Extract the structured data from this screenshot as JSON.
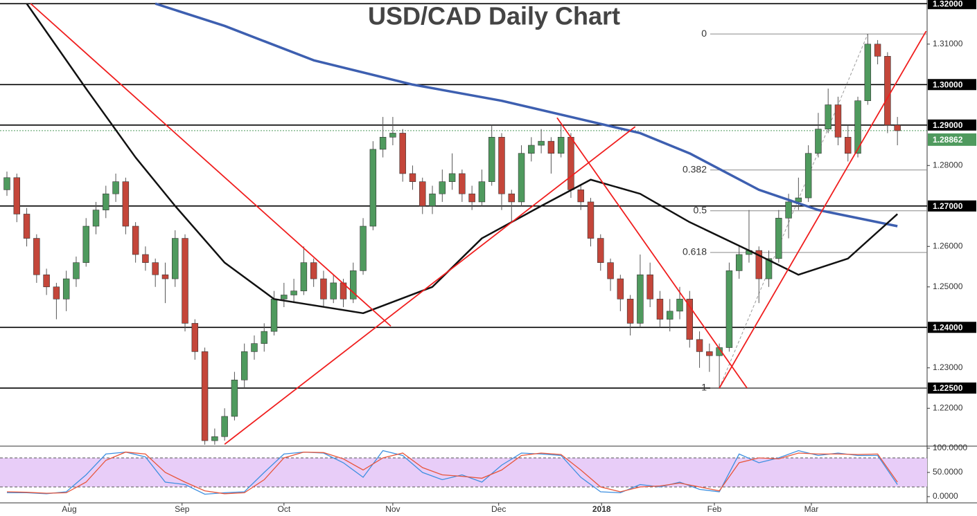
{
  "chart_data": {
    "type": "candlestick",
    "title": "USD/CAD Daily Chart",
    "xlim": [
      -0.7,
      93
    ],
    "xticks": [
      {
        "value": 6.3,
        "label": "Aug"
      },
      {
        "value": 17.7,
        "label": "Sep"
      },
      {
        "value": 28,
        "label": "Oct"
      },
      {
        "value": 39,
        "label": "Nov"
      },
      {
        "value": 49.7,
        "label": "Dec"
      },
      {
        "value": 60.1,
        "label": "2018"
      },
      {
        "value": 71.5,
        "label": "Feb"
      },
      {
        "value": 81.3,
        "label": "Mar"
      }
    ],
    "ylim": [
      1.2115,
      1.3209
    ],
    "yticks": [
      {
        "value": 1.22,
        "label": "1.22000"
      },
      {
        "value": 1.23,
        "label": "1.23000"
      },
      {
        "value": 1.25,
        "label": "1.25000"
      },
      {
        "value": 1.26,
        "label": "1.26000"
      },
      {
        "value": 1.28,
        "label": "1.28000"
      },
      {
        "value": 1.31,
        "label": "1.31000"
      }
    ],
    "levels": [
      {
        "value": 1.32,
        "label": "1.32000"
      },
      {
        "value": 1.3,
        "label": "1.30000"
      },
      {
        "value": 1.29,
        "label": "1.29000"
      },
      {
        "value": 1.27,
        "label": "1.27000"
      },
      {
        "value": 1.24,
        "label": "1.24000"
      },
      {
        "value": 1.225,
        "label": "1.22500"
      }
    ],
    "last_price": {
      "value": 1.28862,
      "label": "1.28862"
    },
    "up_color": "#4f9a5e",
    "down_color": "#c4463a",
    "candles": [
      [
        1.274,
        1.2785,
        1.2725,
        1.277
      ],
      [
        1.277,
        1.278,
        1.266,
        1.268
      ],
      [
        1.268,
        1.2695,
        1.26,
        1.262
      ],
      [
        1.262,
        1.263,
        1.251,
        1.253
      ],
      [
        1.253,
        1.2545,
        1.248,
        1.25
      ],
      [
        1.25,
        1.251,
        1.242,
        1.247
      ],
      [
        1.247,
        1.254,
        1.244,
        1.252
      ],
      [
        1.252,
        1.2575,
        1.25,
        1.256
      ],
      [
        1.256,
        1.267,
        1.255,
        1.265
      ],
      [
        1.265,
        1.271,
        1.263,
        1.269
      ],
      [
        1.269,
        1.275,
        1.267,
        1.273
      ],
      [
        1.273,
        1.278,
        1.271,
        1.276
      ],
      [
        1.276,
        1.277,
        1.263,
        1.265
      ],
      [
        1.265,
        1.266,
        1.256,
        1.258
      ],
      [
        1.258,
        1.26,
        1.254,
        1.256
      ],
      [
        1.256,
        1.257,
        1.25,
        1.253
      ],
      [
        1.253,
        1.256,
        1.246,
        1.252
      ],
      [
        1.252,
        1.264,
        1.25,
        1.262
      ],
      [
        1.262,
        1.263,
        1.239,
        1.241
      ],
      [
        1.241,
        1.242,
        1.232,
        1.234
      ],
      [
        1.234,
        1.235,
        1.211,
        1.212
      ],
      [
        1.212,
        1.215,
        1.211,
        1.213
      ],
      [
        1.213,
        1.22,
        1.212,
        1.218
      ],
      [
        1.218,
        1.229,
        1.217,
        1.227
      ],
      [
        1.227,
        1.236,
        1.225,
        1.234
      ],
      [
        1.234,
        1.238,
        1.232,
        1.236
      ],
      [
        1.236,
        1.241,
        1.234,
        1.239
      ],
      [
        1.239,
        1.249,
        1.238,
        1.247
      ],
      [
        1.247,
        1.251,
        1.245,
        1.248
      ],
      [
        1.248,
        1.252,
        1.246,
        1.249
      ],
      [
        1.249,
        1.26,
        1.248,
        1.256
      ],
      [
        1.256,
        1.257,
        1.25,
        1.252
      ],
      [
        1.252,
        1.254,
        1.245,
        1.247
      ],
      [
        1.247,
        1.253,
        1.246,
        1.251
      ],
      [
        1.251,
        1.252,
        1.245,
        1.247
      ],
      [
        1.247,
        1.256,
        1.246,
        1.254
      ],
      [
        1.254,
        1.267,
        1.253,
        1.265
      ],
      [
        1.265,
        1.286,
        1.264,
        1.284
      ],
      [
        1.284,
        1.292,
        1.282,
        1.287
      ],
      [
        1.287,
        1.292,
        1.285,
        1.288
      ],
      [
        1.288,
        1.289,
        1.276,
        1.278
      ],
      [
        1.278,
        1.28,
        1.274,
        1.276
      ],
      [
        1.276,
        1.277,
        1.268,
        1.27
      ],
      [
        1.27,
        1.275,
        1.268,
        1.273
      ],
      [
        1.273,
        1.279,
        1.271,
        1.276
      ],
      [
        1.276,
        1.283,
        1.274,
        1.278
      ],
      [
        1.278,
        1.279,
        1.271,
        1.273
      ],
      [
        1.273,
        1.275,
        1.269,
        1.271
      ],
      [
        1.271,
        1.279,
        1.27,
        1.276
      ],
      [
        1.276,
        1.29,
        1.275,
        1.287
      ],
      [
        1.287,
        1.288,
        1.269,
        1.273
      ],
      [
        1.273,
        1.274,
        1.266,
        1.271
      ],
      [
        1.271,
        1.285,
        1.27,
        1.283
      ],
      [
        1.283,
        1.287,
        1.281,
        1.285
      ],
      [
        1.285,
        1.289,
        1.283,
        1.286
      ],
      [
        1.286,
        1.287,
        1.278,
        1.283
      ],
      [
        1.283,
        1.29,
        1.282,
        1.287
      ],
      [
        1.287,
        1.288,
        1.272,
        1.274
      ],
      [
        1.274,
        1.275,
        1.269,
        1.271
      ],
      [
        1.271,
        1.272,
        1.26,
        1.262
      ],
      [
        1.262,
        1.263,
        1.254,
        1.256
      ],
      [
        1.256,
        1.257,
        1.249,
        1.252
      ],
      [
        1.252,
        1.253,
        1.244,
        1.247
      ],
      [
        1.247,
        1.248,
        1.238,
        1.241
      ],
      [
        1.241,
        1.258,
        1.24,
        1.253
      ],
      [
        1.253,
        1.256,
        1.245,
        1.247
      ],
      [
        1.247,
        1.249,
        1.24,
        1.242
      ],
      [
        1.242,
        1.247,
        1.239,
        1.244
      ],
      [
        1.244,
        1.25,
        1.242,
        1.247
      ],
      [
        1.247,
        1.249,
        1.235,
        1.237
      ],
      [
        1.237,
        1.239,
        1.23,
        1.234
      ],
      [
        1.234,
        1.236,
        1.229,
        1.233
      ],
      [
        1.233,
        1.236,
        1.225,
        1.235
      ],
      [
        1.235,
        1.256,
        1.234,
        1.254
      ],
      [
        1.254,
        1.26,
        1.252,
        1.258
      ],
      [
        1.258,
        1.269,
        1.256,
        1.259
      ],
      [
        1.259,
        1.26,
        1.246,
        1.252
      ],
      [
        1.252,
        1.259,
        1.25,
        1.257
      ],
      [
        1.257,
        1.269,
        1.256,
        1.267
      ],
      [
        1.267,
        1.273,
        1.262,
        1.271
      ],
      [
        1.271,
        1.277,
        1.269,
        1.272
      ],
      [
        1.272,
        1.285,
        1.271,
        1.283
      ],
      [
        1.283,
        1.293,
        1.282,
        1.289
      ],
      [
        1.289,
        1.299,
        1.288,
        1.295
      ],
      [
        1.295,
        1.297,
        1.285,
        1.287
      ],
      [
        1.287,
        1.29,
        1.281,
        1.283
      ],
      [
        1.283,
        1.297,
        1.282,
        1.296
      ],
      [
        1.296,
        1.3125,
        1.295,
        1.31
      ],
      [
        1.31,
        1.311,
        1.305,
        1.307
      ],
      [
        1.307,
        1.308,
        1.288,
        1.29
      ],
      [
        1.29,
        1.292,
        1.285,
        1.2886
      ]
    ],
    "moving_averages": [
      {
        "color": "#3d5fb0",
        "width": 3.5,
        "x": [
          15,
          22,
          31,
          41,
          50,
          57,
          64,
          69,
          76,
          82,
          90
        ],
        "values": [
          1.32,
          1.3145,
          1.306,
          1.3,
          1.296,
          1.292,
          1.288,
          1.283,
          1.274,
          1.269,
          1.265
        ]
      },
      {
        "color": "#111111",
        "width": 2.5,
        "x": [
          2,
          8,
          13,
          17,
          22,
          27,
          36,
          43,
          48,
          54,
          59,
          64,
          69,
          75,
          80,
          85,
          90
        ],
        "values": [
          1.32,
          1.299,
          1.282,
          1.27,
          1.256,
          1.247,
          1.2435,
          1.25,
          1.262,
          1.27,
          1.2765,
          1.273,
          1.266,
          1.259,
          1.253,
          1.257,
          1.268
        ]
      }
    ],
    "trendlines": [
      [
        2.4,
        1.32,
        38.8,
        1.2403
      ],
      [
        22.0,
        1.2111,
        63.5,
        1.2896
      ],
      [
        55.6,
        1.2918,
        74.8,
        1.225
      ],
      [
        72.0,
        1.225,
        92.9,
        1.3132
      ]
    ],
    "fib_range": [
      72.0,
      1.225,
      87.0,
      1.3125
    ],
    "fib_levels": [
      {
        "label": "0",
        "value": 1.3125
      },
      {
        "label": "0.382",
        "value": 1.2789
      },
      {
        "label": "0.5",
        "value": 1.2688
      },
      {
        "label": "0.618",
        "value": 1.2585
      },
      {
        "label": "1",
        "value": 1.225
      }
    ],
    "oscillator": {
      "ylim": [
        0,
        100
      ],
      "yticks": [
        {
          "value": 100,
          "label": "100.0000"
        },
        {
          "value": 50,
          "label": "50.0000"
        },
        {
          "value": 0,
          "label": "0.0000"
        }
      ],
      "band": [
        20,
        80
      ],
      "x": [
        0,
        2,
        4,
        6,
        8,
        10,
        12,
        14,
        16,
        18,
        20,
        22,
        24,
        26,
        28,
        30,
        32,
        34,
        36,
        38,
        40,
        42,
        44,
        46,
        48,
        50,
        52,
        54,
        56,
        58,
        60,
        62,
        64,
        66,
        68,
        70,
        72,
        74,
        76,
        78,
        80,
        82,
        84,
        86,
        88,
        90
      ],
      "series": [
        {
          "color": "#3d8fe0",
          "values": [
            8,
            8,
            6,
            10,
            45,
            88,
            92,
            82,
            30,
            25,
            5,
            8,
            10,
            50,
            88,
            92,
            90,
            70,
            40,
            95,
            85,
            50,
            35,
            45,
            30,
            65,
            90,
            88,
            85,
            40,
            10,
            8,
            25,
            20,
            30,
            15,
            10,
            88,
            70,
            80,
            95,
            85,
            90,
            85,
            85,
            25
          ]
        },
        {
          "color": "#e8553a",
          "values": [
            10,
            9,
            7,
            8,
            30,
            75,
            92,
            88,
            50,
            30,
            12,
            6,
            8,
            35,
            80,
            92,
            91,
            78,
            55,
            80,
            90,
            60,
            45,
            42,
            38,
            55,
            85,
            90,
            87,
            55,
            20,
            10,
            20,
            22,
            28,
            20,
            12,
            70,
            80,
            78,
            90,
            88,
            88,
            87,
            88,
            30
          ]
        }
      ]
    }
  }
}
